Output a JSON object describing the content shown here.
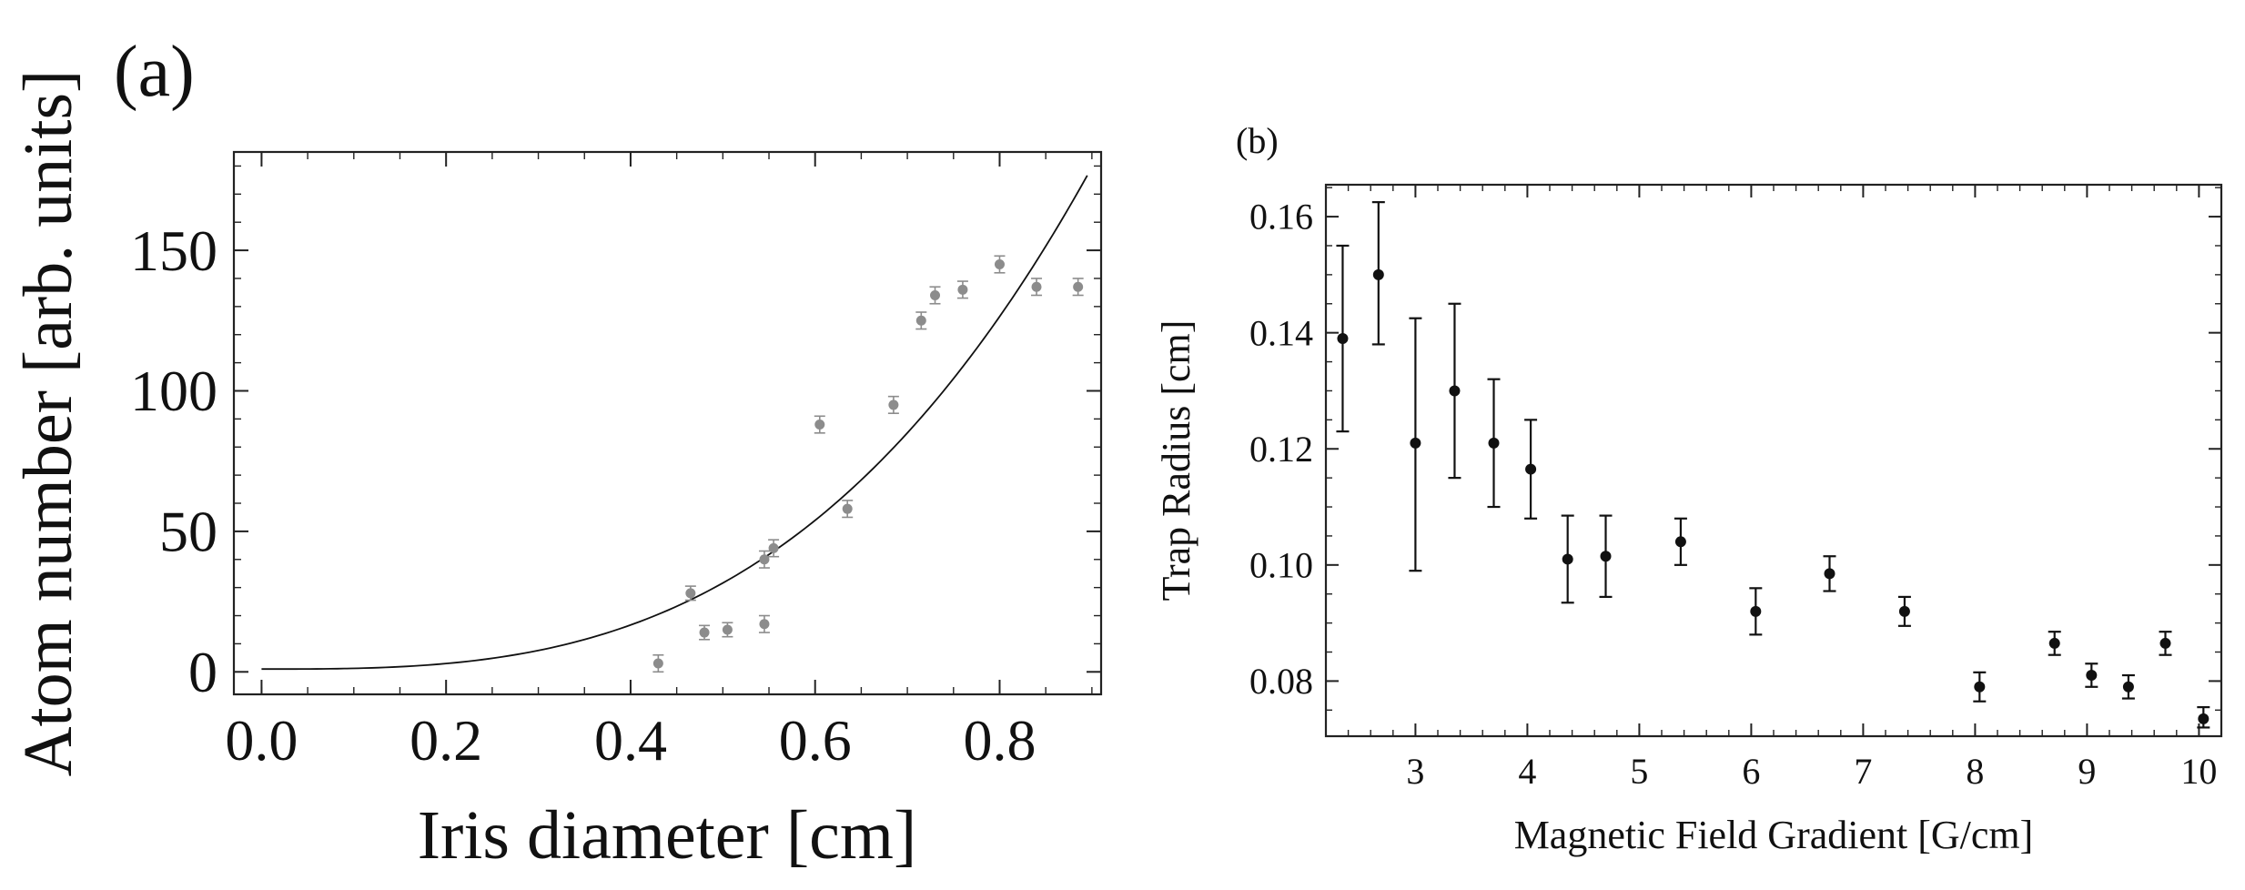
{
  "chart_data": [
    {
      "type": "scatter",
      "panel_label": "(a)",
      "title": "",
      "xlabel": "Iris diameter [cm]",
      "ylabel": "Atom number [arb. units]",
      "xlim": [
        -0.03,
        0.91
      ],
      "ylim": [
        -8,
        185
      ],
      "xticks": [
        0.0,
        0.2,
        0.4,
        0.6,
        0.8
      ],
      "xtick_labels": [
        "0.0",
        "0.2",
        "0.4",
        "0.6",
        "0.8"
      ],
      "yticks": [
        0,
        50,
        100,
        150
      ],
      "ytick_labels": [
        "0",
        "50",
        "100",
        "150"
      ],
      "grid": false,
      "marker_color": "#8c8c8c",
      "series": [
        {
          "name": "data",
          "points": [
            {
              "x": 0.43,
              "y": 3,
              "err": 3
            },
            {
              "x": 0.465,
              "y": 28,
              "err": 2.5
            },
            {
              "x": 0.48,
              "y": 14,
              "err": 2.5
            },
            {
              "x": 0.505,
              "y": 15,
              "err": 2.5
            },
            {
              "x": 0.545,
              "y": 40,
              "err": 3
            },
            {
              "x": 0.545,
              "y": 17,
              "err": 3
            },
            {
              "x": 0.555,
              "y": 44,
              "err": 3
            },
            {
              "x": 0.605,
              "y": 88,
              "err": 3
            },
            {
              "x": 0.635,
              "y": 58,
              "err": 3
            },
            {
              "x": 0.685,
              "y": 95,
              "err": 3
            },
            {
              "x": 0.715,
              "y": 125,
              "err": 3
            },
            {
              "x": 0.73,
              "y": 134,
              "err": 3
            },
            {
              "x": 0.76,
              "y": 136,
              "err": 3
            },
            {
              "x": 0.8,
              "y": 145,
              "err": 3
            },
            {
              "x": 0.84,
              "y": 137,
              "err": 3
            },
            {
              "x": 0.885,
              "y": 137,
              "err": 3
            }
          ]
        },
        {
          "name": "fit",
          "style": "line",
          "model": "y = a*x^3 + c",
          "a": 245,
          "c": 1,
          "x_range": [
            0.0,
            0.895
          ]
        }
      ]
    },
    {
      "type": "scatter",
      "panel_label": "(b)",
      "title": "",
      "xlabel": "Magnetic Field Gradient [G/cm]",
      "ylabel": "Trap Radius [cm]",
      "xlim": [
        2.2,
        10.2
      ],
      "ylim": [
        0.0705,
        0.1655
      ],
      "xticks": [
        3,
        4,
        5,
        6,
        7,
        8,
        9,
        10
      ],
      "xtick_labels": [
        "3",
        "4",
        "5",
        "6",
        "7",
        "8",
        "9",
        "10"
      ],
      "yticks": [
        0.08,
        0.1,
        0.12,
        0.14,
        0.16
      ],
      "ytick_labels": [
        "0.08",
        "0.10",
        "0.12",
        "0.14",
        "0.16"
      ],
      "grid": false,
      "marker_color": "#111111",
      "series": [
        {
          "name": "data",
          "points": [
            {
              "x": 2.35,
              "y": 0.139,
              "lo": 0.123,
              "hi": 0.155
            },
            {
              "x": 2.67,
              "y": 0.15,
              "lo": 0.138,
              "hi": 0.1625
            },
            {
              "x": 3.0,
              "y": 0.121,
              "lo": 0.099,
              "hi": 0.1425
            },
            {
              "x": 3.35,
              "y": 0.13,
              "lo": 0.115,
              "hi": 0.145
            },
            {
              "x": 3.7,
              "y": 0.121,
              "lo": 0.11,
              "hi": 0.132
            },
            {
              "x": 4.03,
              "y": 0.1165,
              "lo": 0.108,
              "hi": 0.125
            },
            {
              "x": 4.36,
              "y": 0.101,
              "lo": 0.0935,
              "hi": 0.1085
            },
            {
              "x": 4.7,
              "y": 0.1015,
              "lo": 0.0945,
              "hi": 0.1085
            },
            {
              "x": 5.37,
              "y": 0.104,
              "lo": 0.1,
              "hi": 0.108
            },
            {
              "x": 6.04,
              "y": 0.092,
              "lo": 0.088,
              "hi": 0.096
            },
            {
              "x": 6.7,
              "y": 0.0985,
              "lo": 0.0955,
              "hi": 0.1015
            },
            {
              "x": 7.37,
              "y": 0.092,
              "lo": 0.0895,
              "hi": 0.0945
            },
            {
              "x": 8.04,
              "y": 0.079,
              "lo": 0.0765,
              "hi": 0.0815
            },
            {
              "x": 8.71,
              "y": 0.0865,
              "lo": 0.0845,
              "hi": 0.0885
            },
            {
              "x": 9.04,
              "y": 0.081,
              "lo": 0.079,
              "hi": 0.083
            },
            {
              "x": 9.37,
              "y": 0.079,
              "lo": 0.077,
              "hi": 0.081
            },
            {
              "x": 9.7,
              "y": 0.0865,
              "lo": 0.0845,
              "hi": 0.0885
            },
            {
              "x": 10.04,
              "y": 0.0735,
              "lo": 0.072,
              "hi": 0.0755
            }
          ]
        }
      ]
    }
  ]
}
